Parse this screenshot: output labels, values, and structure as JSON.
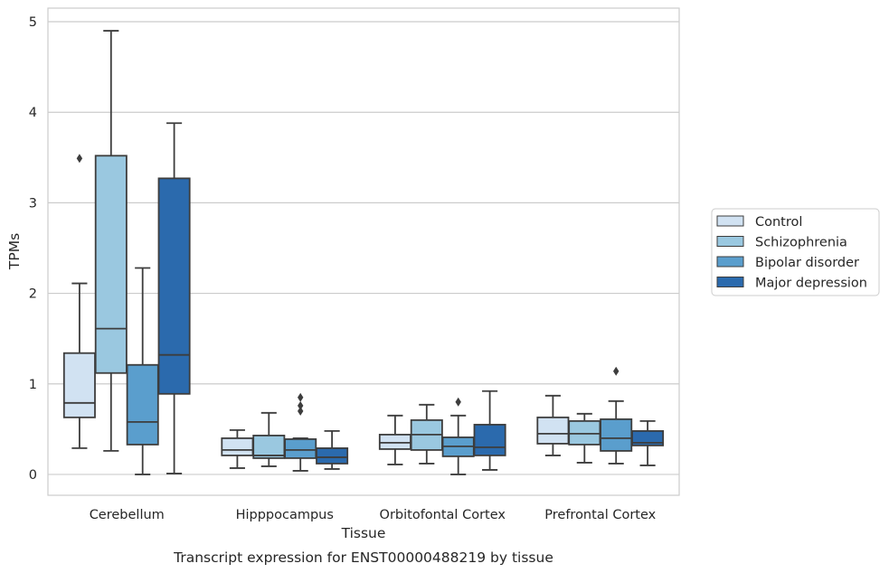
{
  "chart_data": {
    "type": "box",
    "caption": "Transcript expression for ENST00000488219 by tissue",
    "xlabel": "Tissue",
    "ylabel": "TPMs",
    "ylim": [
      -0.23,
      5.15
    ],
    "yticks": [
      "0",
      "1",
      "2",
      "3",
      "4",
      "5"
    ],
    "grid": "horizontal",
    "legend_position": "center-right",
    "categories": [
      "Cerebellum",
      "Hipppocampus",
      "Orbitofontal Cortex",
      "Prefrontal Cortex"
    ],
    "series": [
      {
        "name": "Control",
        "color": "#d1e2f2",
        "boxes": [
          {
            "whisker_low": 0.29,
            "q1": 0.63,
            "median": 0.79,
            "q3": 1.34,
            "whisker_high": 2.11,
            "outliers": [
              3.49
            ]
          },
          {
            "whisker_low": 0.07,
            "q1": 0.21,
            "median": 0.27,
            "q3": 0.4,
            "whisker_high": 0.49,
            "outliers": []
          },
          {
            "whisker_low": 0.11,
            "q1": 0.28,
            "median": 0.35,
            "q3": 0.44,
            "whisker_high": 0.65,
            "outliers": []
          },
          {
            "whisker_low": 0.21,
            "q1": 0.34,
            "median": 0.45,
            "q3": 0.63,
            "whisker_high": 0.87,
            "outliers": []
          }
        ]
      },
      {
        "name": "Schizophrenia",
        "color": "#9ac8e0",
        "boxes": [
          {
            "whisker_low": 0.26,
            "q1": 1.12,
            "median": 1.61,
            "q3": 3.52,
            "whisker_high": 4.9,
            "outliers": []
          },
          {
            "whisker_low": 0.09,
            "q1": 0.18,
            "median": 0.21,
            "q3": 0.43,
            "whisker_high": 0.68,
            "outliers": []
          },
          {
            "whisker_low": 0.12,
            "q1": 0.27,
            "median": 0.44,
            "q3": 0.6,
            "whisker_high": 0.77,
            "outliers": []
          },
          {
            "whisker_low": 0.13,
            "q1": 0.33,
            "median": 0.45,
            "q3": 0.59,
            "whisker_high": 0.67,
            "outliers": []
          }
        ]
      },
      {
        "name": "Bipolar disorder",
        "color": "#5a9ecd",
        "boxes": [
          {
            "whisker_low": 0.0,
            "q1": 0.33,
            "median": 0.58,
            "q3": 1.21,
            "whisker_high": 2.28,
            "outliers": []
          },
          {
            "whisker_low": 0.04,
            "q1": 0.18,
            "median": 0.27,
            "q3": 0.39,
            "whisker_high": 0.4,
            "outliers": [
              0.85,
              0.76,
              0.7
            ]
          },
          {
            "whisker_low": 0.0,
            "q1": 0.2,
            "median": 0.31,
            "q3": 0.41,
            "whisker_high": 0.65,
            "outliers": [
              0.8
            ]
          },
          {
            "whisker_low": 0.12,
            "q1": 0.26,
            "median": 0.4,
            "q3": 0.61,
            "whisker_high": 0.81,
            "outliers": [
              1.14
            ]
          }
        ]
      },
      {
        "name": "Major depression",
        "color": "#2b6aad",
        "boxes": [
          {
            "whisker_low": 0.01,
            "q1": 0.89,
            "median": 1.32,
            "q3": 3.27,
            "whisker_high": 3.88,
            "outliers": []
          },
          {
            "whisker_low": 0.06,
            "q1": 0.12,
            "median": 0.19,
            "q3": 0.29,
            "whisker_high": 0.48,
            "outliers": []
          },
          {
            "whisker_low": 0.05,
            "q1": 0.21,
            "median": 0.3,
            "q3": 0.55,
            "whisker_high": 0.92,
            "outliers": []
          },
          {
            "whisker_low": 0.1,
            "q1": 0.32,
            "median": 0.35,
            "q3": 0.48,
            "whisker_high": 0.59,
            "outliers": []
          }
        ]
      }
    ]
  }
}
